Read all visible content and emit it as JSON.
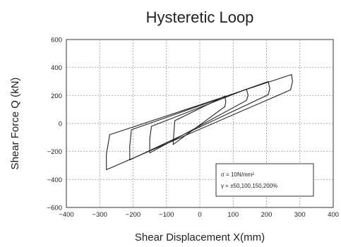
{
  "chart_data": {
    "type": "line",
    "title": "Hysteretic Loop",
    "xlabel": "Shear Displacement X(mm)",
    "ylabel": "Shear Force Q (kN)",
    "xlim": [
      -400,
      400
    ],
    "ylim": [
      -600,
      600
    ],
    "xticks": [
      -400,
      -300,
      -200,
      -100,
      0,
      100,
      200,
      300,
      400
    ],
    "xtick_labels": [
      "−400",
      "−300",
      "−200",
      "−100",
      "0",
      "100",
      "200",
      "300",
      "400"
    ],
    "yticks": [
      600,
      400,
      200,
      0,
      -200,
      -400,
      -600
    ],
    "ytick_labels": [
      "600",
      "400",
      "200",
      "0",
      "−200",
      "−400",
      "−600"
    ],
    "grid": true,
    "legend_lines": [
      "σ = 10N/mm²",
      "γ = ±50,100,150,200%"
    ],
    "series": [
      {
        "values": [
          [
            -80,
            -150
          ],
          [
            75,
            120
          ],
          [
            78,
            155
          ],
          [
            75,
            195
          ],
          [
            -75,
            20
          ],
          [
            -78,
            -80
          ],
          [
            -80,
            -150
          ]
        ]
      },
      {
        "values": [
          [
            -150,
            -210
          ],
          [
            140,
            165
          ],
          [
            145,
            200
          ],
          [
            140,
            245
          ],
          [
            -145,
            -20
          ],
          [
            -150,
            -110
          ],
          [
            -150,
            -210
          ]
        ]
      },
      {
        "values": [
          [
            -210,
            -260
          ],
          [
            205,
            205
          ],
          [
            210,
            250
          ],
          [
            205,
            300
          ],
          [
            -205,
            -45
          ],
          [
            -210,
            -160
          ],
          [
            -210,
            -260
          ]
        ]
      },
      {
        "values": [
          [
            -280,
            -330
          ],
          [
            272,
            240
          ],
          [
            278,
            300
          ],
          [
            275,
            350
          ],
          [
            -270,
            -80
          ],
          [
            -280,
            -220
          ],
          [
            -280,
            -330
          ]
        ]
      }
    ]
  }
}
